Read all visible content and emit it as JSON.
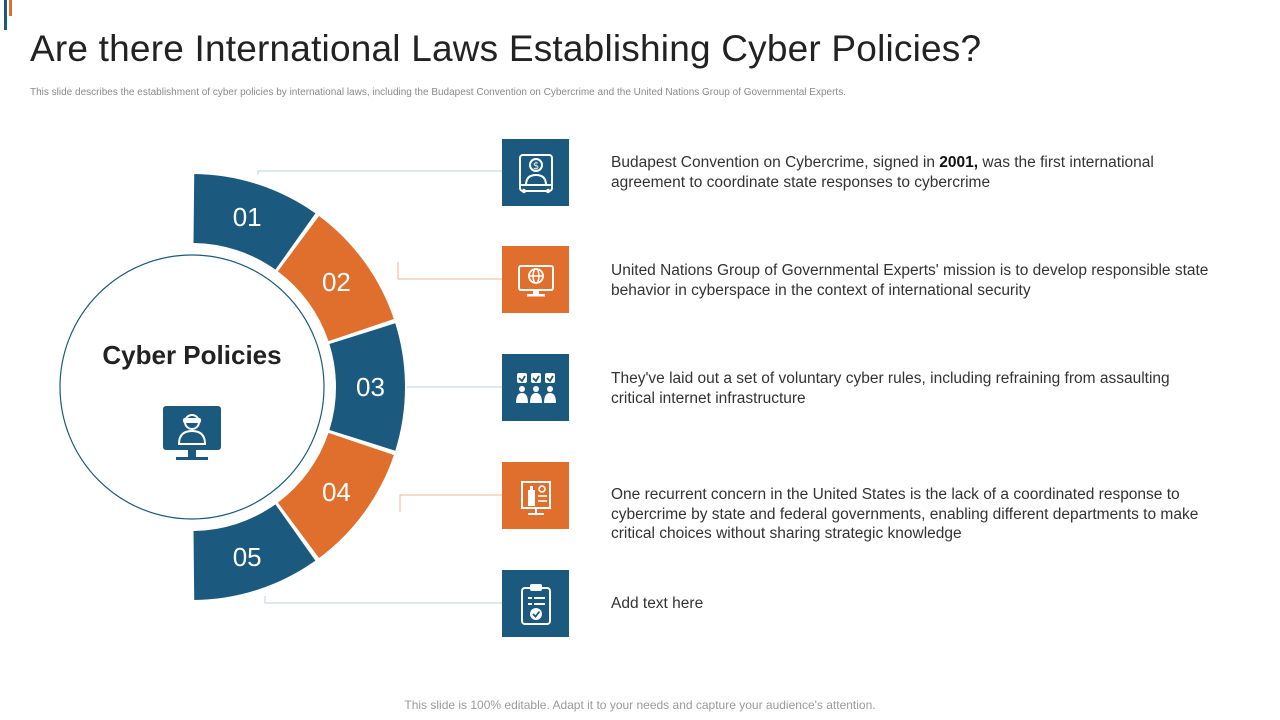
{
  "title": "Are there International Laws Establishing Cyber Policies?",
  "subtitle": "This slide describes the establishment of cyber policies by international laws, including the Budapest Convention on Cybercrime and the United Nations Group of Governmental Experts.",
  "center": {
    "title": "Cyber Policies",
    "icon": "hacker-monitor-icon"
  },
  "colors": {
    "blue": "#1b5a7e",
    "orange": "#e06e2c"
  },
  "items": [
    {
      "number": "01",
      "color": "blue",
      "icon": "money-cybercrime-icon",
      "text_before": "Budapest Convention on Cybercrime, signed in ",
      "text_bold": "2001,",
      "text_after": " was the first international agreement to coordinate state responses to cybercrime"
    },
    {
      "number": "02",
      "color": "orange",
      "icon": "global-computer-icon",
      "text": "United Nations Group of Governmental Experts' mission is to develop responsible state behavior in cyberspace in the context of international security"
    },
    {
      "number": "03",
      "color": "blue",
      "icon": "voluntary-rules-icon",
      "text": "They've laid out a set of voluntary cyber rules, including refraining from assaulting critical internet infrastructure"
    },
    {
      "number": "04",
      "color": "orange",
      "icon": "infrastructure-plan-icon",
      "text": "One recurrent concern in the United States is the lack of a coordinated response to cybercrime by state and federal governments, enabling different departments to make critical choices without sharing strategic knowledge"
    },
    {
      "number": "05",
      "color": "blue",
      "icon": "clipboard-check-icon",
      "text": "Add text here"
    }
  ],
  "footer": "This slide is 100% editable. Adapt it to your needs and capture your audience's attention."
}
